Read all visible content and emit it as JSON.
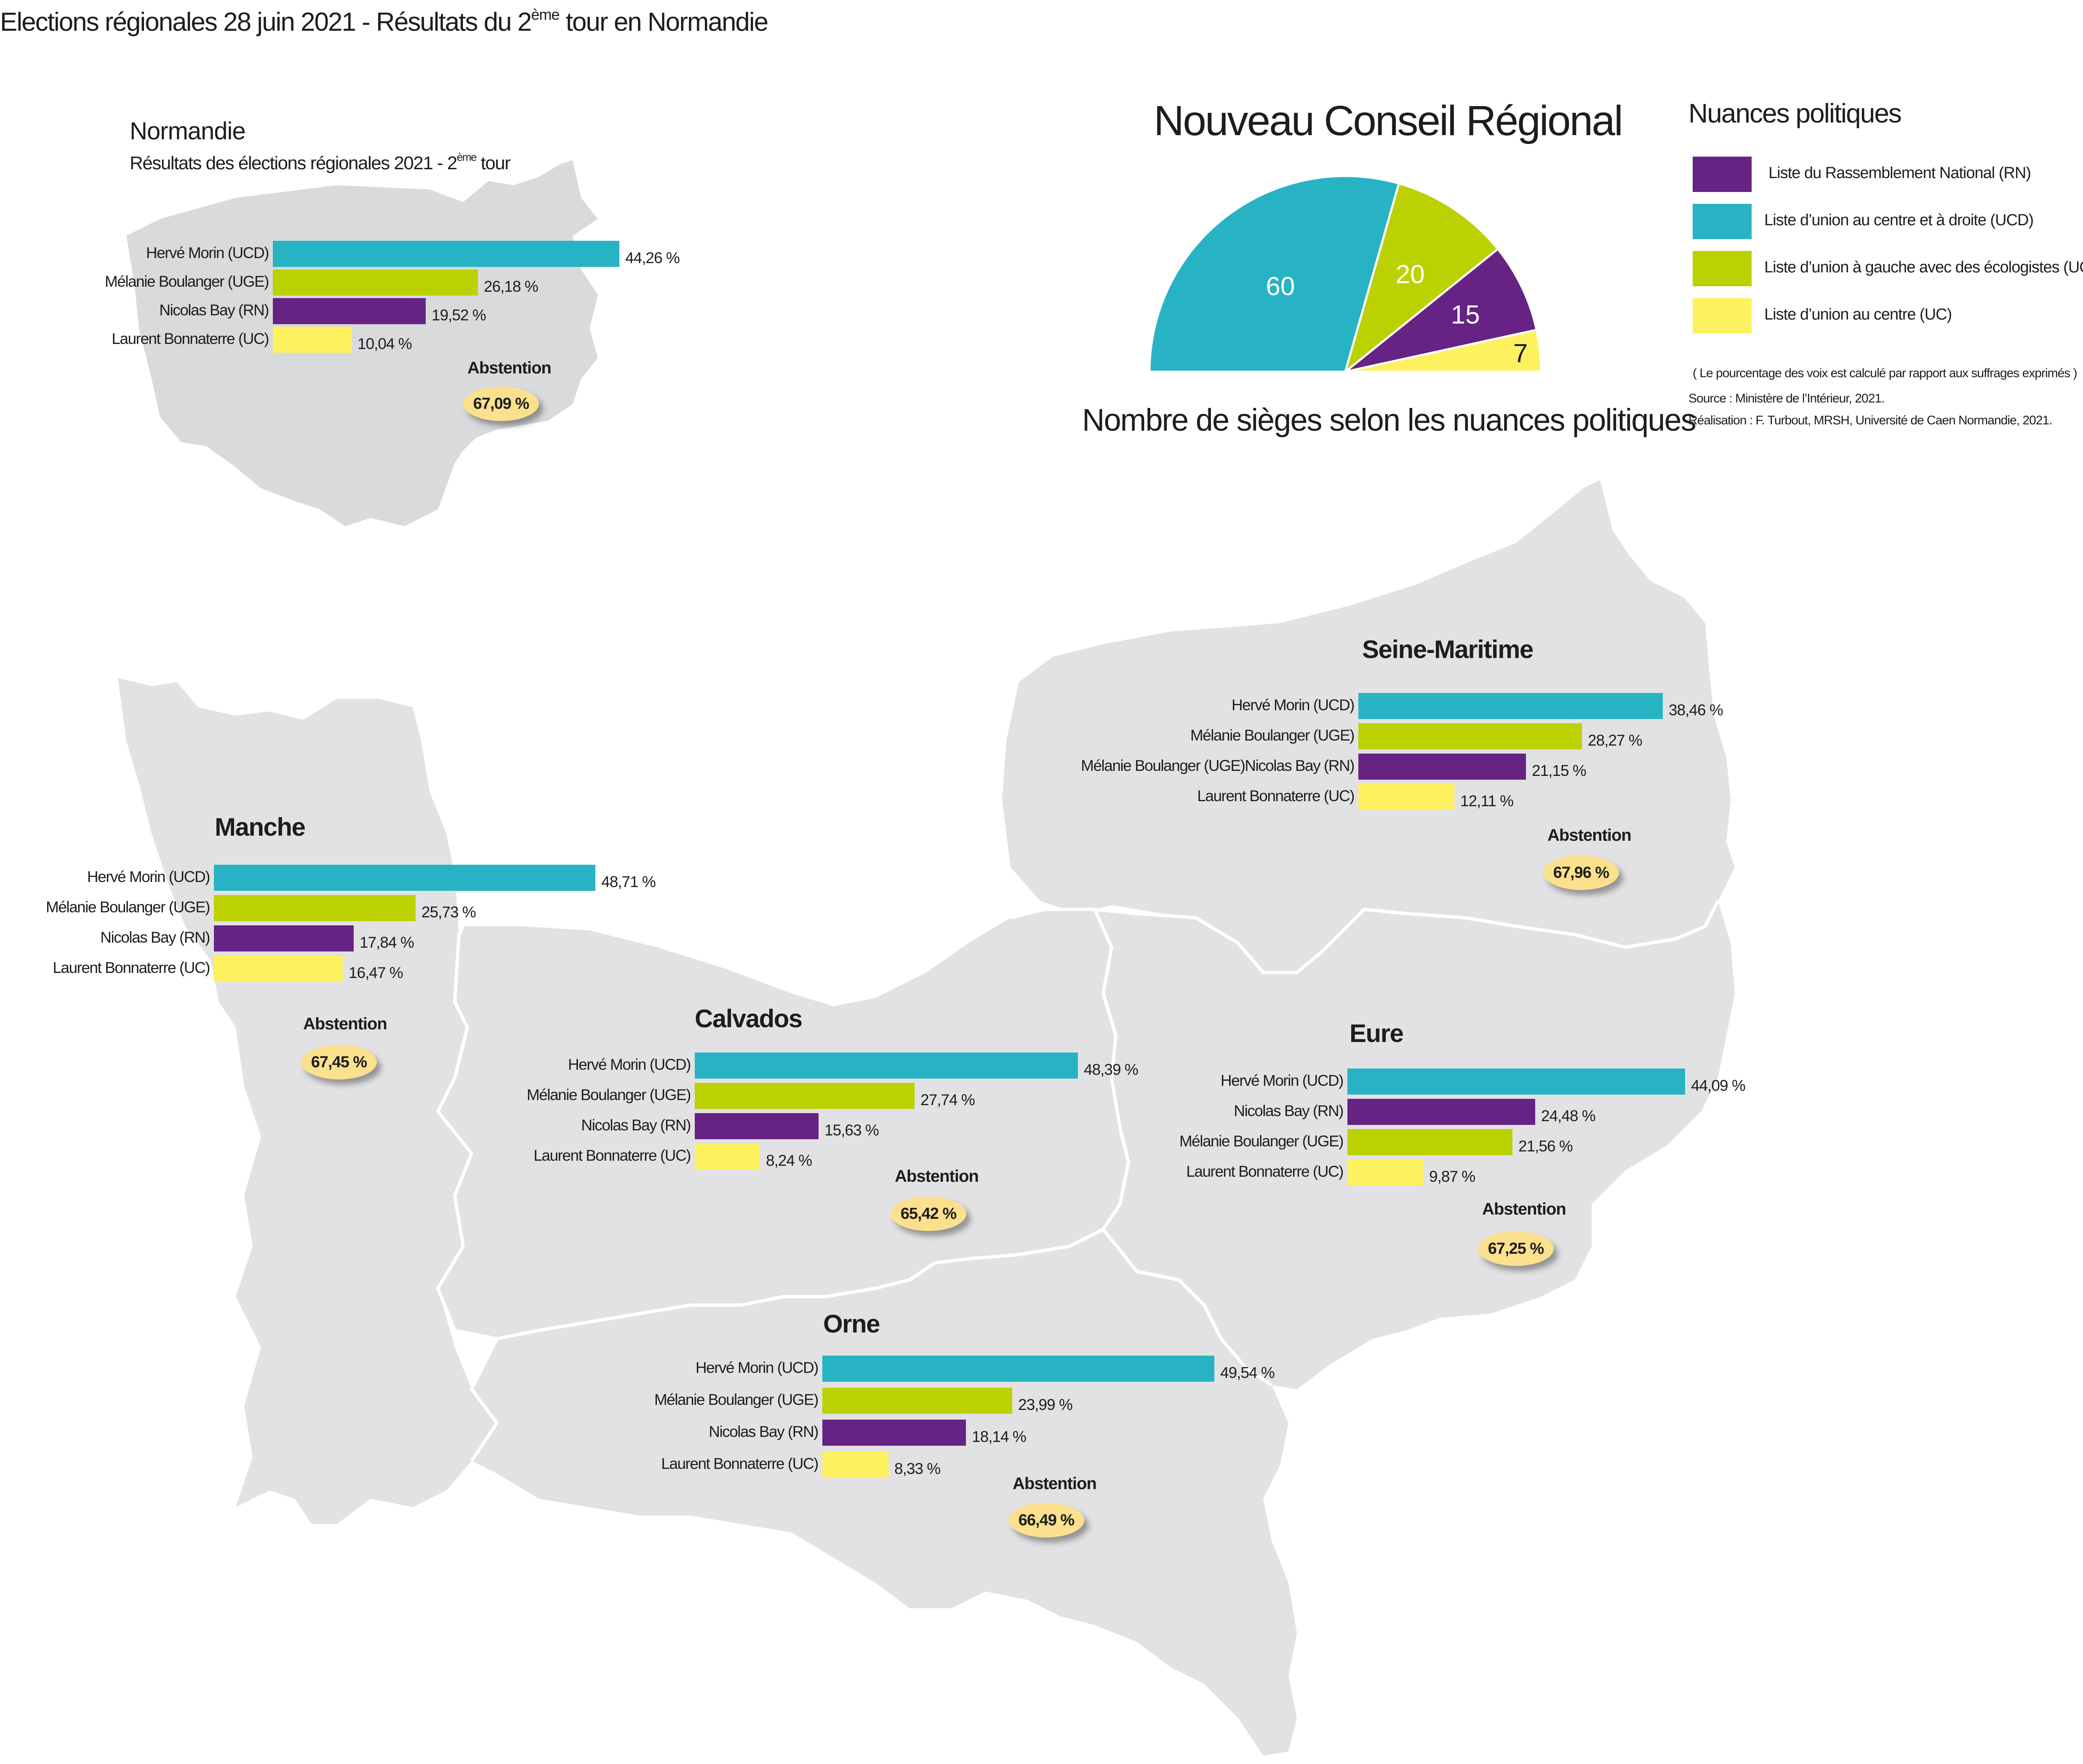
{
  "title": {
    "before": "Elections régionales 28 juin 2021 - Résultats du 2",
    "sup": "ème",
    "after": " tour en Normandie"
  },
  "colors": {
    "UCD": "#28b3c4",
    "UGE": "#bcd101",
    "RN": "#662383",
    "UC": "#fef15f",
    "map_fill": "#e2e2e4",
    "inset_fill": "#d8dadc",
    "abstention_fill": "#fbe08e"
  },
  "inset": {
    "title": "Normandie",
    "subtitle_before": "Résultats des élections régionales 2021 - 2",
    "subtitle_sup": "ème",
    "subtitle_after": " tour"
  },
  "conseil": {
    "title": "Nouveau Conseil Régional",
    "subtitle": "Nombre de sièges selon les nuances politiques"
  },
  "legend": {
    "title": "Nuances politiques",
    "items": [
      {
        "label": "Liste du Rassemblement National (RN)",
        "key": "RN"
      },
      {
        "label": "Liste d’union au centre et à droite (UCD)",
        "key": "UCD"
      },
      {
        "label": "Liste d’union à gauche avec des écologistes (UGE)",
        "key": "UGE"
      },
      {
        "label": "Liste d’union au centre (UC)",
        "key": "UC"
      }
    ],
    "note": "( Le pourcentage des voix est calculé par rapport aux suffrages exprimés )",
    "source": "Source : Ministère de l’Intérieur, 2021.",
    "credit": "Réalisation : F. Turbout, MRSH, Université de Caen Normandie, 2021."
  },
  "abstention_label": "Abstention",
  "chart_data": [
    {
      "type": "pie",
      "title": "Nouveau Conseil Régional",
      "categories": [
        "UCD",
        "UGE",
        "RN",
        "UC"
      ],
      "values": [
        60,
        20,
        15,
        7
      ]
    },
    {
      "type": "bar",
      "title": "Normandie",
      "categories": [
        "Hervé Morin (UCD)",
        "Mélanie Boulanger (UGE)",
        "Nicolas Bay (RN)",
        "Laurent Bonnaterre (UC)"
      ],
      "values": [
        44.26,
        26.18,
        19.52,
        10.04
      ],
      "labels": [
        "44,26 %",
        "26,18 %",
        "19,52 %",
        "10,04 %"
      ],
      "keys": [
        "UCD",
        "UGE",
        "RN",
        "UC"
      ],
      "abstention": "67,09 %"
    },
    {
      "type": "bar",
      "title": "Seine-Maritime",
      "categories": [
        "Hervé Morin (UCD)",
        "Mélanie Boulanger (UGE)",
        "Mélanie Boulanger (UGE)Nicolas Bay (RN)",
        "Laurent Bonnaterre (UC)"
      ],
      "values": [
        38.46,
        28.27,
        21.15,
        12.11
      ],
      "labels": [
        "38,46 %",
        "28,27 %",
        "21,15 %",
        "12,11 %"
      ],
      "keys": [
        "UCD",
        "UGE",
        "RN",
        "UC"
      ],
      "abstention": "67,96 %"
    },
    {
      "type": "bar",
      "title": "Manche",
      "categories": [
        "Hervé Morin (UCD)",
        "Mélanie Boulanger (UGE)",
        "Nicolas Bay (RN)",
        "Laurent Bonnaterre (UC)"
      ],
      "values": [
        48.71,
        25.73,
        17.84,
        16.47
      ],
      "labels": [
        "48,71 %",
        "25,73 %",
        "17,84 %",
        "16,47 %"
      ],
      "keys": [
        "UCD",
        "UGE",
        "RN",
        "UC"
      ],
      "abstention": "67,45 %"
    },
    {
      "type": "bar",
      "title": "Calvados",
      "categories": [
        "Hervé Morin (UCD)",
        "Mélanie Boulanger (UGE)",
        "Nicolas Bay (RN)",
        "Laurent Bonnaterre (UC)"
      ],
      "values": [
        48.39,
        27.74,
        15.63,
        8.24
      ],
      "labels": [
        "48,39 %",
        "27,74 %",
        "15,63 %",
        "8,24 %"
      ],
      "keys": [
        "UCD",
        "UGE",
        "RN",
        "UC"
      ],
      "abstention": "65,42 %"
    },
    {
      "type": "bar",
      "title": "Eure",
      "categories": [
        "Hervé Morin (UCD)",
        "Nicolas Bay (RN)",
        "Mélanie Boulanger (UGE)",
        "Laurent Bonnaterre (UC)"
      ],
      "values": [
        44.09,
        24.48,
        21.56,
        9.87
      ],
      "labels": [
        "44,09 %",
        "24,48 %",
        "21,56 %",
        "9,87 %"
      ],
      "keys": [
        "UCD",
        "RN",
        "UGE",
        "UC"
      ],
      "abstention": "67,25 %"
    },
    {
      "type": "bar",
      "title": "Orne",
      "categories": [
        "Hervé Morin (UCD)",
        "Mélanie Boulanger (UGE)",
        "Nicolas Bay (RN)",
        "Laurent Bonnaterre (UC)"
      ],
      "values": [
        49.54,
        23.99,
        18.14,
        8.33
      ],
      "labels": [
        "49,54 %",
        "23,99 %",
        "18,14 %",
        "8,33 %"
      ],
      "keys": [
        "UCD",
        "UGE",
        "RN",
        "UC"
      ],
      "abstention": "66,49 %"
    }
  ]
}
